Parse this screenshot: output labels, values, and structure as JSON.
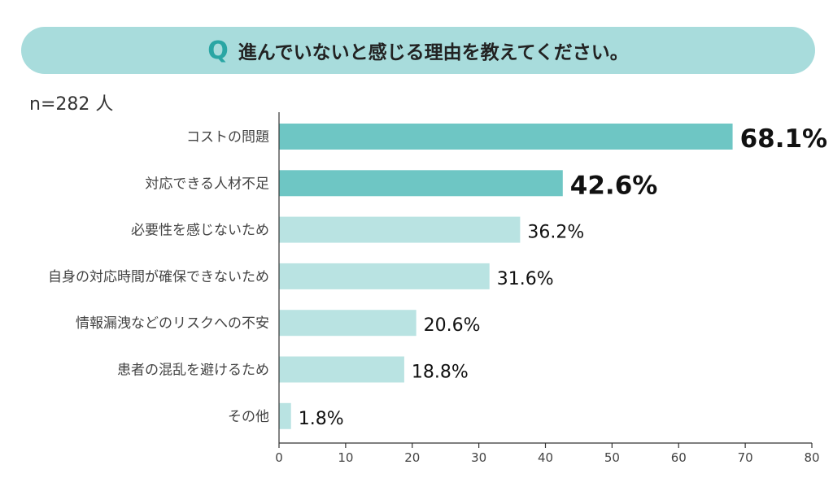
{
  "header": {
    "q_mark": "Q",
    "question": "進んでいないと感じる理由を教えてください。"
  },
  "sample_label": "n=282 人",
  "chart_data": {
    "type": "bar",
    "orientation": "horizontal",
    "categories": [
      "コストの問題",
      "対応できる人材不足",
      "必要性を感じないため",
      "自身の対応時間が確保できないため",
      "情報漏洩などのリスクへの不安",
      "患者の混乱を避けるため",
      "その他"
    ],
    "values": [
      68.1,
      42.6,
      36.2,
      31.6,
      20.6,
      18.8,
      1.8
    ],
    "value_labels": [
      "68.1%",
      "42.6%",
      "36.2%",
      "31.6%",
      "20.6%",
      "18.8%",
      "1.8%"
    ],
    "highlight_top": 2,
    "xlim": [
      0,
      80
    ],
    "xticks": [
      "0",
      "10",
      "20",
      "30",
      "40",
      "50",
      "60",
      "70",
      "80"
    ],
    "grid": false,
    "colors": {
      "highlight": "#6ec6c4",
      "normal": "#b9e3e2",
      "axis": "#333333",
      "banner": "#a8dcdc",
      "q_mark": "#2aa6a4"
    }
  }
}
